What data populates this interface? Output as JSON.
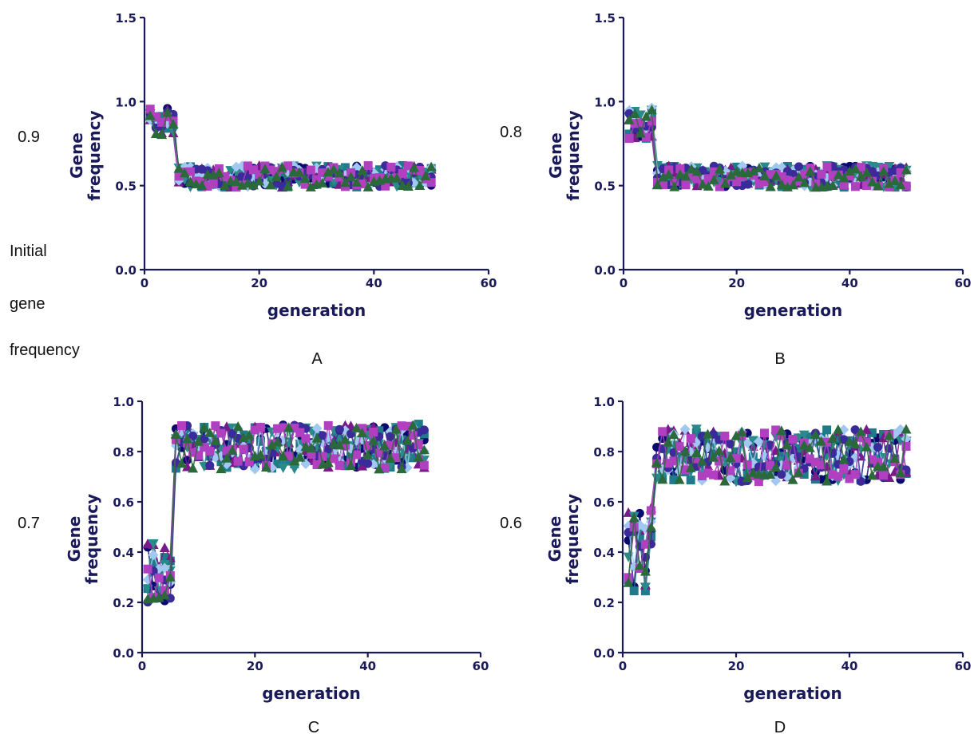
{
  "side_label": {
    "line1": "Initial",
    "line2": "gene",
    "line3": "frequency"
  },
  "series_colors": [
    "#0a0a6e",
    "#1f7a8a",
    "#7a1a8a",
    "#2a8a8a",
    "#a0c8f0",
    "#3a2a9a",
    "#b040c0",
    "#2a6a3a"
  ],
  "chart_data": [
    {
      "panel": "A",
      "type": "scatter",
      "initial_value": "0.9",
      "xlabel": "generation",
      "ylabel": "Gene frequency",
      "xlim": [
        0,
        60
      ],
      "ylim": [
        0.0,
        1.5
      ],
      "xticks": [
        "0",
        "20",
        "40",
        "60"
      ],
      "yticks": [
        "0.0",
        "0.5",
        "1.0",
        "1.5"
      ],
      "phase1": {
        "x_range": [
          1,
          5
        ],
        "y_range": [
          0.8,
          0.96
        ]
      },
      "phase2": {
        "x_range": [
          6,
          50
        ],
        "y_range": [
          0.49,
          0.62
        ]
      }
    },
    {
      "panel": "B",
      "type": "scatter",
      "initial_value": "0.8",
      "xlabel": "generation",
      "ylabel": "Gene frequency",
      "xlim": [
        0,
        60
      ],
      "ylim": [
        0.0,
        1.5
      ],
      "xticks": [
        "0",
        "20",
        "40",
        "60"
      ],
      "yticks": [
        "0.0",
        "0.5",
        "1.0",
        "1.5"
      ],
      "phase1": {
        "x_range": [
          1,
          5
        ],
        "y_range": [
          0.78,
          0.97
        ]
      },
      "phase2": {
        "x_range": [
          6,
          50
        ],
        "y_range": [
          0.49,
          0.62
        ]
      }
    },
    {
      "panel": "C",
      "type": "scatter",
      "initial_value": "0.7",
      "xlabel": "generation",
      "ylabel": "Gene frequency",
      "xlim": [
        0,
        60
      ],
      "ylim": [
        0.0,
        1.0
      ],
      "xticks": [
        "0",
        "20",
        "40",
        "60"
      ],
      "yticks": [
        "0.0",
        "0.2",
        "0.4",
        "0.6",
        "0.8",
        "1.0"
      ],
      "phase1": {
        "x_range": [
          1,
          5
        ],
        "y_range": [
          0.2,
          0.44
        ]
      },
      "phase2": {
        "x_range": [
          6,
          50
        ],
        "y_range": [
          0.73,
          0.91
        ]
      }
    },
    {
      "panel": "D",
      "type": "scatter",
      "initial_value": "0.6",
      "xlabel": "generation",
      "ylabel": "Gene frequency",
      "xlim": [
        0,
        60
      ],
      "ylim": [
        0.0,
        1.0
      ],
      "xticks": [
        "0",
        "20",
        "40",
        "60"
      ],
      "yticks": [
        "0.0",
        "0.2",
        "0.4",
        "0.6",
        "0.8",
        "1.0"
      ],
      "phase1": {
        "x_range": [
          1,
          5
        ],
        "y_range": [
          0.24,
          0.58
        ]
      },
      "phase2": {
        "x_range": [
          6,
          50
        ],
        "y_range": [
          0.68,
          0.89
        ]
      }
    }
  ]
}
